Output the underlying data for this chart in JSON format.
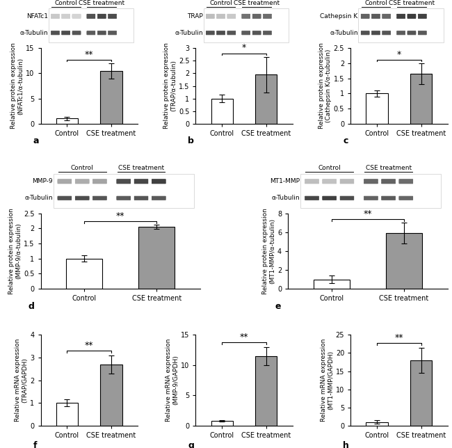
{
  "panels": {
    "a": {
      "ylabel": "Relative protein expression\n(NFATc1/α-tubulin)",
      "ylim": [
        0,
        15
      ],
      "yticks": [
        0,
        5,
        10,
        15
      ],
      "control_val": 1.0,
      "cse_val": 10.5,
      "control_err": 0.3,
      "cse_err": 1.5,
      "sig": "**",
      "label": "a"
    },
    "b": {
      "ylabel": "Relative protein expression\n(TRAP/α-tubulin)",
      "ylim": [
        0,
        3.0
      ],
      "yticks": [
        0,
        0.5,
        1.0,
        1.5,
        2.0,
        2.5,
        3.0
      ],
      "control_val": 1.0,
      "cse_val": 1.95,
      "control_err": 0.15,
      "cse_err": 0.7,
      "sig": "*",
      "label": "b"
    },
    "c": {
      "ylabel": "Relative protein expression\n(Cathepsin K/α-tubulin)",
      "ylim": [
        0,
        2.5
      ],
      "yticks": [
        0,
        0.5,
        1.0,
        1.5,
        2.0,
        2.5
      ],
      "control_val": 1.0,
      "cse_val": 1.65,
      "control_err": 0.1,
      "cse_err": 0.35,
      "sig": "*",
      "label": "c"
    },
    "d": {
      "ylabel": "Relative protein expression\n(MMP-9/α-tubulin)",
      "ylim": [
        0,
        2.5
      ],
      "yticks": [
        0,
        0.5,
        1.0,
        1.5,
        2.0,
        2.5
      ],
      "control_val": 1.0,
      "cse_val": 2.05,
      "control_err": 0.1,
      "cse_err": 0.07,
      "sig": "**",
      "label": "d"
    },
    "e": {
      "ylabel": "Relative protein expression\n(MT1-MMP/α-tubulin)",
      "ylim": [
        0,
        8
      ],
      "yticks": [
        0,
        2,
        4,
        6,
        8
      ],
      "control_val": 1.0,
      "cse_val": 5.9,
      "control_err": 0.4,
      "cse_err": 1.1,
      "sig": "**",
      "label": "e"
    },
    "f": {
      "ylabel": "Relative mRNA expression\n(TRAP/GAPDH)",
      "ylim": [
        0,
        4
      ],
      "yticks": [
        0,
        1,
        2,
        3,
        4
      ],
      "control_val": 1.0,
      "cse_val": 2.7,
      "control_err": 0.15,
      "cse_err": 0.4,
      "sig": "**",
      "label": "f"
    },
    "g": {
      "ylabel": "Relative mRNA expression\n(MMP-9/GAPDH)",
      "ylim": [
        0,
        15
      ],
      "yticks": [
        0,
        5,
        10,
        15
      ],
      "control_val": 0.8,
      "cse_val": 11.5,
      "control_err": 0.15,
      "cse_err": 1.5,
      "sig": "**",
      "label": "g"
    },
    "h": {
      "ylabel": "Relative mRNA expression\n(MT1-MMP/GAPDH)",
      "ylim": [
        0,
        25
      ],
      "yticks": [
        0,
        5,
        10,
        15,
        20,
        25
      ],
      "control_val": 1.0,
      "cse_val": 18.0,
      "control_err": 0.5,
      "cse_err": 3.5,
      "sig": "**",
      "label": "h"
    }
  },
  "wb_panels": {
    "a": {
      "label1": "NFATc1",
      "label2": "α-Tubulin",
      "ctrl_bands1": [
        0.25,
        0.22,
        0.2
      ],
      "cse_bands1": [
        0.8,
        0.85,
        0.82
      ],
      "ctrl_bands2": [
        0.8,
        0.82,
        0.78
      ],
      "cse_bands2": [
        0.75,
        0.78,
        0.76
      ],
      "n_ctrl": 3,
      "n_cse": 3
    },
    "b": {
      "label1": "TRAP",
      "label2": "α-Tubulin",
      "ctrl_bands1": [
        0.3,
        0.28,
        0.25
      ],
      "cse_bands1": [
        0.65,
        0.7,
        0.68
      ],
      "ctrl_bands2": [
        0.8,
        0.82,
        0.78
      ],
      "cse_bands2": [
        0.75,
        0.78,
        0.76
      ],
      "n_ctrl": 3,
      "n_cse": 3
    },
    "c": {
      "label1": "Cathepsin K",
      "label2": "α-Tubulin",
      "ctrl_bands1": [
        0.72,
        0.75,
        0.7
      ],
      "cse_bands1": [
        0.88,
        0.9,
        0.87
      ],
      "ctrl_bands2": [
        0.8,
        0.82,
        0.78
      ],
      "cse_bands2": [
        0.75,
        0.78,
        0.76
      ],
      "n_ctrl": 3,
      "n_cse": 3
    },
    "d": {
      "label1": "MMP-9",
      "label2": "α-Tubulin",
      "ctrl_bands1": [
        0.4,
        0.38,
        0.42
      ],
      "cse_bands1": [
        0.82,
        0.85,
        0.88
      ],
      "ctrl_bands2": [
        0.8,
        0.82,
        0.78
      ],
      "cse_bands2": [
        0.75,
        0.78,
        0.76
      ],
      "n_ctrl": 3,
      "n_cse": 3
    },
    "e": {
      "label1": "MT1-MMP",
      "label2": "α-Tubulin",
      "ctrl_bands1": [
        0.3,
        0.28,
        0.32
      ],
      "cse_bands1": [
        0.7,
        0.72,
        0.68
      ],
      "ctrl_bands2": [
        0.85,
        0.88,
        0.82
      ],
      "cse_bands2": [
        0.72,
        0.75,
        0.7
      ],
      "n_ctrl": 3,
      "n_cse": 3
    }
  },
  "bar_color_control": "white",
  "bar_color_cse": "#999999",
  "bar_edge_color": "black",
  "bar_width": 0.5,
  "xlabel_control": "Control",
  "xlabel_cse": "CSE treatment",
  "tick_fontsize": 7,
  "label_fontsize": 6.5,
  "sig_fontsize": 9,
  "background_color": "white"
}
